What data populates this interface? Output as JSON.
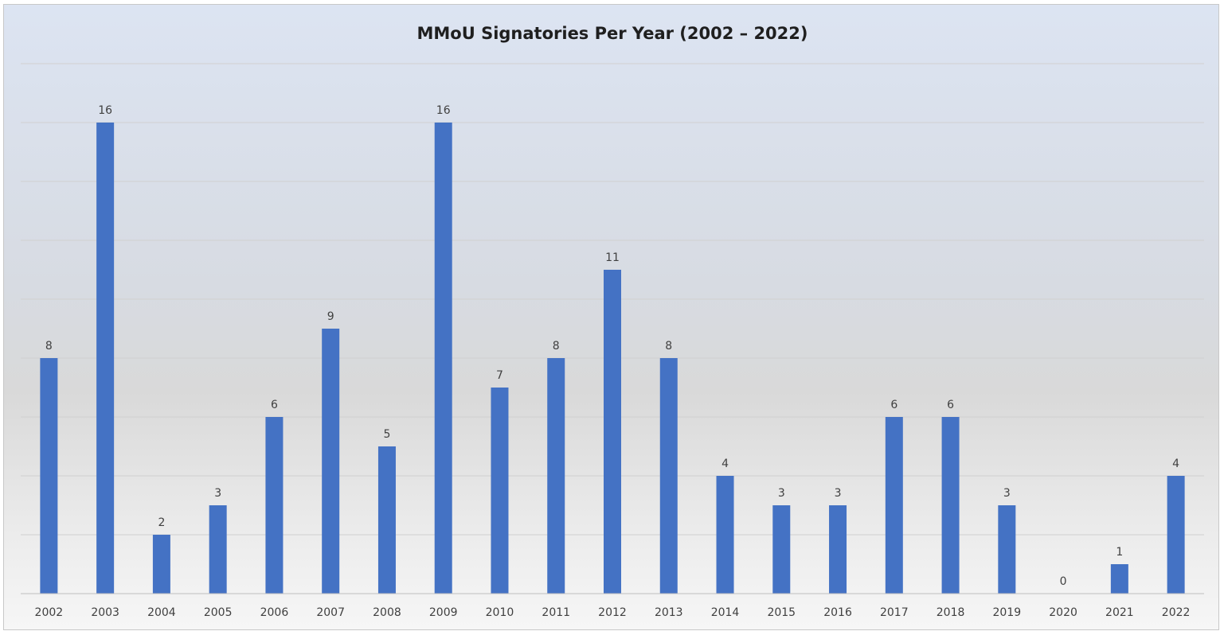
{
  "chart_data": {
    "type": "bar",
    "title": "MMoU Signatories Per Year (2002 – 2022)",
    "categories": [
      "2002",
      "2003",
      "2004",
      "2005",
      "2006",
      "2007",
      "2008",
      "2009",
      "2010",
      "2011",
      "2012",
      "2013",
      "2014",
      "2015",
      "2016",
      "2017",
      "2018",
      "2019",
      "2020",
      "2021",
      "2022"
    ],
    "values": [
      8,
      16,
      2,
      3,
      6,
      9,
      5,
      16,
      7,
      8,
      11,
      8,
      4,
      3,
      3,
      6,
      6,
      3,
      0,
      1,
      4
    ],
    "xlabel": "",
    "ylabel": "",
    "ylim": [
      0,
      18
    ],
    "grid": true,
    "data_labels": true,
    "legend": "none",
    "bar_color": "#4472c4",
    "grid_color": "#d0d0d0",
    "axis_color": "#bfbfbf"
  }
}
